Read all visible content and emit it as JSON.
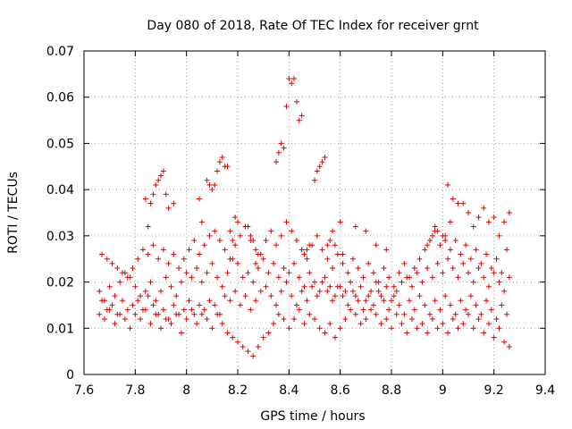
{
  "chart_data": {
    "type": "scatter",
    "title": "Day 080 of 2018, Rate Of TEC Index for receiver grnt",
    "xlabel": "GPS time / hours",
    "ylabel": "ROTI / TECUs",
    "xlim": [
      7.6,
      9.4
    ],
    "ylim": [
      0,
      0.07
    ],
    "xticks": [
      7.6,
      7.8,
      8,
      8.2,
      8.4,
      8.6,
      8.8,
      9,
      9.2,
      9.4
    ],
    "xtick_labels": [
      "7.6",
      "7.8",
      "8",
      "8.2",
      "8.4",
      "8.6",
      "8.8",
      "9",
      "9.2",
      "9.4"
    ],
    "yticks": [
      0,
      0.01,
      0.02,
      0.03,
      0.04,
      0.05,
      0.06,
      0.07
    ],
    "ytick_labels": [
      "0",
      "0.01",
      "0.02",
      "0.03",
      "0.04",
      "0.05",
      "0.06",
      "0.07"
    ],
    "grid": true,
    "marker": "+",
    "marker_color": "#dd0000",
    "series": [
      {
        "name": "grnt",
        "x": [
          7.66,
          7.68,
          7.7,
          7.72,
          7.74,
          7.76,
          7.78,
          7.8,
          7.82,
          7.84,
          7.86,
          7.88,
          7.9,
          7.92,
          7.94,
          7.96,
          7.98,
          8.0,
          8.02,
          8.04,
          8.06,
          8.08,
          8.1,
          8.12,
          8.14,
          8.16,
          8.18,
          8.2,
          8.22,
          8.24,
          8.26,
          8.28,
          8.3,
          8.32,
          8.34,
          8.36,
          8.38,
          8.4,
          8.42,
          8.44,
          8.46,
          8.48,
          8.5,
          8.52,
          8.54,
          8.56,
          8.58,
          8.6,
          8.62,
          8.64,
          8.66,
          8.68,
          8.7,
          8.72,
          8.74,
          8.76,
          8.78,
          8.8,
          8.82,
          8.84,
          8.86,
          8.88,
          8.9,
          8.92,
          8.94,
          8.96,
          8.98,
          9.0,
          9.02,
          9.04,
          9.06,
          9.08,
          9.1,
          9.12,
          9.14,
          9.16,
          9.18,
          9.2,
          9.22,
          9.24,
          9.26,
          7.66,
          7.68,
          7.7,
          7.72,
          7.74,
          7.76,
          7.78,
          7.8,
          7.82,
          7.84,
          7.86,
          7.88,
          7.9,
          7.92,
          7.94,
          7.96,
          7.98,
          8.0,
          8.02,
          8.04,
          8.06,
          8.08,
          8.1,
          8.12,
          8.14,
          8.16,
          8.18,
          8.2,
          8.22,
          8.24,
          8.26,
          8.28,
          8.3,
          8.32,
          8.34,
          8.36,
          8.38,
          8.4,
          8.42,
          8.44,
          8.46,
          8.48,
          8.5,
          8.52,
          8.54,
          8.56,
          8.58,
          8.6,
          8.62,
          8.64,
          8.66,
          8.68,
          8.7,
          8.72,
          8.74,
          8.76,
          8.78,
          8.8,
          8.82,
          8.84,
          8.86,
          8.88,
          8.9,
          8.92,
          8.94,
          8.96,
          8.98,
          9.0,
          9.02,
          9.04,
          9.06,
          9.08,
          9.1,
          9.12,
          9.14,
          9.16,
          9.18,
          9.2,
          9.22,
          9.24,
          9.26,
          7.67,
          7.69,
          7.71,
          7.73,
          7.75,
          7.77,
          7.79,
          7.81,
          7.83,
          7.85,
          7.87,
          7.89,
          7.91,
          7.93,
          7.95,
          7.97,
          7.99,
          8.01,
          8.03,
          8.05,
          8.07,
          8.09,
          8.11,
          8.13,
          8.15,
          8.17,
          8.19,
          8.21,
          8.23,
          8.25,
          8.27,
          8.29,
          8.31,
          8.33,
          8.35,
          8.37,
          8.39,
          8.41,
          8.43,
          8.45,
          8.47,
          8.49,
          8.51,
          8.53,
          8.55,
          8.57,
          8.59,
          8.61,
          8.63,
          8.65,
          8.67,
          8.69,
          8.71,
          8.73,
          8.75,
          8.77,
          8.79,
          8.81,
          8.83,
          8.85,
          8.87,
          8.89,
          8.91,
          8.93,
          8.95,
          8.97,
          8.99,
          9.01,
          9.03,
          9.05,
          9.07,
          9.09,
          9.11,
          9.13,
          9.15,
          9.17,
          9.19,
          9.21,
          9.23,
          9.25,
          7.67,
          7.69,
          7.71,
          7.73,
          7.75,
          7.77,
          7.79,
          7.81,
          7.83,
          7.85,
          7.87,
          7.89,
          7.91,
          7.93,
          7.95,
          7.97,
          7.99,
          8.01,
          8.03,
          8.05,
          8.07,
          8.09,
          8.11,
          8.13,
          8.15,
          8.17,
          8.19,
          8.21,
          8.23,
          8.25,
          8.27,
          8.29,
          8.31,
          8.33,
          8.35,
          8.37,
          8.39,
          8.41,
          8.43,
          8.45,
          8.47,
          8.49,
          8.51,
          8.53,
          8.55,
          8.57,
          8.59,
          8.61,
          8.63,
          8.65,
          8.67,
          8.69,
          8.71,
          8.73,
          8.75,
          8.77,
          8.79,
          8.81,
          8.83,
          8.85,
          8.87,
          8.89,
          8.91,
          8.93,
          8.95,
          8.97,
          8.99,
          9.01,
          9.03,
          9.05,
          9.07,
          9.09,
          9.11,
          9.13,
          9.15,
          9.17,
          9.19,
          9.21,
          9.23,
          9.25,
          7.86,
          7.87,
          7.88,
          7.89,
          7.9,
          7.91,
          7.92,
          7.93,
          8.08,
          8.09,
          8.1,
          8.11,
          8.12,
          8.13,
          8.14,
          8.15,
          8.16,
          8.35,
          8.36,
          8.37,
          8.38,
          8.39,
          8.4,
          8.41,
          8.42,
          8.43,
          8.44,
          8.45,
          8.5,
          8.51,
          8.52,
          8.53,
          8.54,
          9.02,
          9.04,
          9.06,
          9.08,
          9.1,
          9.12,
          9.14,
          9.16,
          9.18,
          9.2,
          9.22,
          9.24,
          9.26,
          7.84,
          7.85,
          7.95,
          8.05,
          8.06,
          8.17,
          8.18,
          8.19,
          8.2,
          8.24,
          8.25,
          8.26,
          8.27,
          8.28,
          8.46,
          8.47,
          8.48,
          8.55,
          8.56,
          8.57,
          8.58,
          8.6,
          8.61,
          8.66,
          8.7,
          8.74,
          8.78,
          8.94,
          8.95,
          8.96,
          8.97,
          8.98,
          9.0,
          9.01,
          9.03
        ],
        "y": [
          0.018,
          0.016,
          0.019,
          0.017,
          0.02,
          0.022,
          0.021,
          0.019,
          0.017,
          0.018,
          0.02,
          0.016,
          0.018,
          0.021,
          0.019,
          0.017,
          0.02,
          0.022,
          0.021,
          0.023,
          0.02,
          0.022,
          0.024,
          0.021,
          0.019,
          0.022,
          0.025,
          0.024,
          0.021,
          0.022,
          0.02,
          0.023,
          0.025,
          0.022,
          0.024,
          0.021,
          0.023,
          0.022,
          0.024,
          0.021,
          0.019,
          0.022,
          0.02,
          0.018,
          0.021,
          0.019,
          0.017,
          0.019,
          0.018,
          0.02,
          0.017,
          0.019,
          0.016,
          0.018,
          0.02,
          0.017,
          0.019,
          0.016,
          0.018,
          0.02,
          0.021,
          0.019,
          0.022,
          0.02,
          0.023,
          0.021,
          0.024,
          0.022,
          0.025,
          0.023,
          0.021,
          0.024,
          0.022,
          0.02,
          0.023,
          0.021,
          0.019,
          0.022,
          0.02,
          0.018,
          0.021,
          0.013,
          0.012,
          0.014,
          0.011,
          0.013,
          0.012,
          0.01,
          0.013,
          0.012,
          0.014,
          0.011,
          0.013,
          0.01,
          0.012,
          0.011,
          0.013,
          0.009,
          0.012,
          0.014,
          0.011,
          0.013,
          0.012,
          0.01,
          0.013,
          0.011,
          0.009,
          0.008,
          0.007,
          0.006,
          0.005,
          0.004,
          0.006,
          0.008,
          0.009,
          0.011,
          0.013,
          0.012,
          0.01,
          0.012,
          0.014,
          0.011,
          0.013,
          0.012,
          0.01,
          0.009,
          0.011,
          0.008,
          0.01,
          0.012,
          0.014,
          0.013,
          0.011,
          0.012,
          0.014,
          0.013,
          0.011,
          0.012,
          0.01,
          0.013,
          0.011,
          0.009,
          0.012,
          0.01,
          0.011,
          0.009,
          0.012,
          0.01,
          0.011,
          0.009,
          0.012,
          0.01,
          0.011,
          0.013,
          0.01,
          0.012,
          0.009,
          0.011,
          0.008,
          0.01,
          0.007,
          0.006,
          0.016,
          0.014,
          0.015,
          0.013,
          0.016,
          0.014,
          0.015,
          0.016,
          0.014,
          0.017,
          0.015,
          0.013,
          0.014,
          0.012,
          0.015,
          0.013,
          0.014,
          0.016,
          0.013,
          0.015,
          0.014,
          0.016,
          0.015,
          0.013,
          0.017,
          0.016,
          0.018,
          0.015,
          0.017,
          0.014,
          0.016,
          0.018,
          0.019,
          0.017,
          0.015,
          0.018,
          0.02,
          0.017,
          0.015,
          0.018,
          0.016,
          0.019,
          0.017,
          0.02,
          0.018,
          0.016,
          0.019,
          0.017,
          0.015,
          0.018,
          0.016,
          0.014,
          0.017,
          0.015,
          0.018,
          0.016,
          0.014,
          0.017,
          0.015,
          0.013,
          0.016,
          0.014,
          0.017,
          0.015,
          0.013,
          0.016,
          0.014,
          0.017,
          0.015,
          0.013,
          0.016,
          0.014,
          0.017,
          0.015,
          0.013,
          0.016,
          0.014,
          0.012,
          0.015,
          0.013,
          0.026,
          0.025,
          0.024,
          0.023,
          0.022,
          0.021,
          0.023,
          0.025,
          0.027,
          0.026,
          0.028,
          0.025,
          0.027,
          0.024,
          0.026,
          0.023,
          0.025,
          0.027,
          0.029,
          0.026,
          0.028,
          0.03,
          0.031,
          0.029,
          0.027,
          0.025,
          0.028,
          0.03,
          0.032,
          0.029,
          0.027,
          0.026,
          0.029,
          0.031,
          0.028,
          0.03,
          0.033,
          0.031,
          0.029,
          0.027,
          0.025,
          0.028,
          0.03,
          0.027,
          0.025,
          0.023,
          0.026,
          0.024,
          0.022,
          0.025,
          0.023,
          0.021,
          0.024,
          0.022,
          0.02,
          0.023,
          0.021,
          0.019,
          0.022,
          0.024,
          0.021,
          0.023,
          0.025,
          0.027,
          0.029,
          0.031,
          0.028,
          0.03,
          0.027,
          0.029,
          0.026,
          0.028,
          0.025,
          0.027,
          0.024,
          0.026,
          0.023,
          0.025,
          0.022,
          0.027,
          0.037,
          0.039,
          0.041,
          0.042,
          0.043,
          0.044,
          0.039,
          0.036,
          0.042,
          0.041,
          0.04,
          0.041,
          0.044,
          0.046,
          0.047,
          0.045,
          0.045,
          0.046,
          0.048,
          0.05,
          0.049,
          0.058,
          0.064,
          0.063,
          0.064,
          0.059,
          0.055,
          0.056,
          0.042,
          0.044,
          0.045,
          0.046,
          0.047,
          0.041,
          0.038,
          0.037,
          0.037,
          0.035,
          0.032,
          0.034,
          0.036,
          0.033,
          0.034,
          0.03,
          0.033,
          0.035,
          0.038,
          0.032,
          0.037,
          0.038,
          0.033,
          0.031,
          0.029,
          0.034,
          0.033,
          0.032,
          0.03,
          0.029,
          0.024,
          0.026,
          0.026,
          0.027,
          0.028,
          0.028,
          0.029,
          0.031,
          0.028,
          0.033,
          0.026,
          0.032,
          0.031,
          0.028,
          0.027,
          0.028,
          0.029,
          0.03,
          0.032,
          0.031,
          0.03,
          0.029,
          0.033
        ]
      }
    ]
  }
}
